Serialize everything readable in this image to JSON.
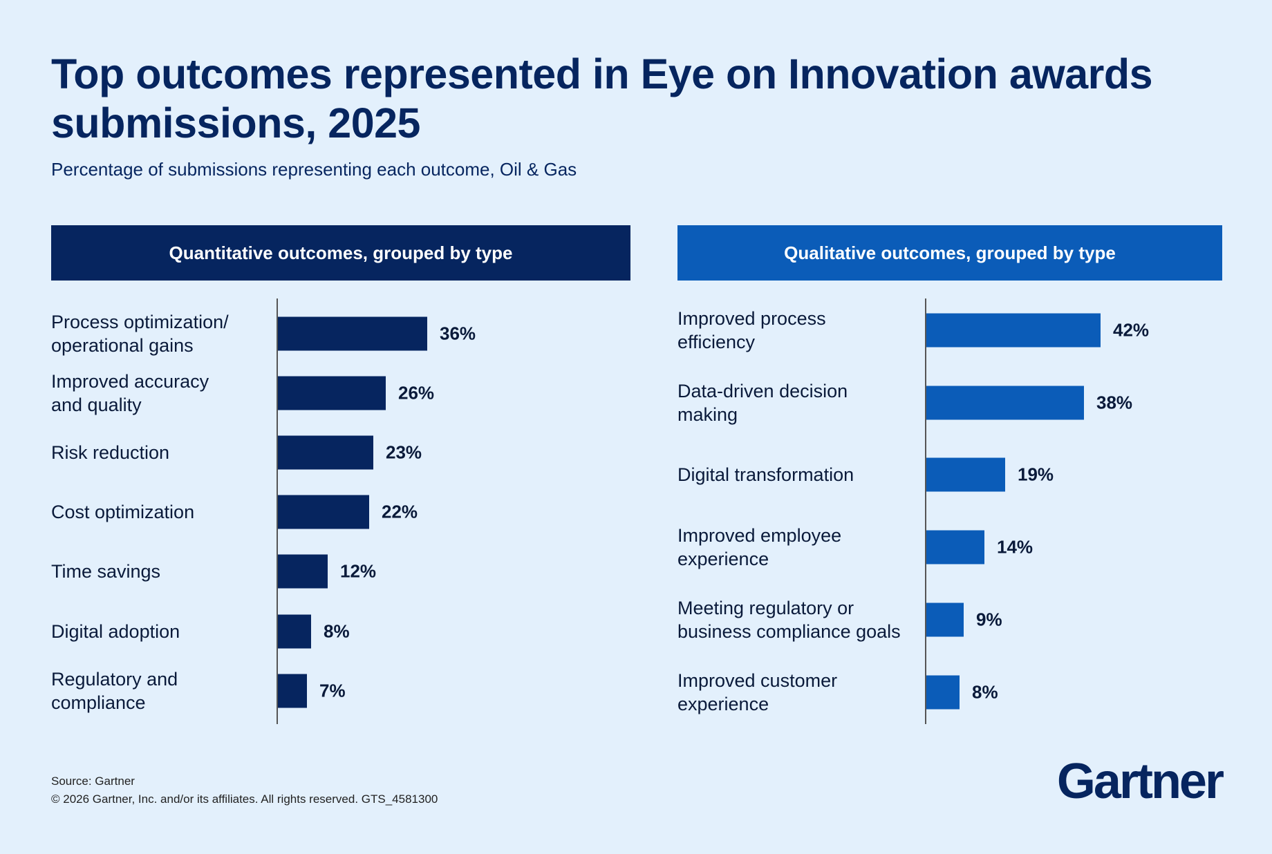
{
  "header": {
    "title": "Top outcomes represented in Eye on Innovation awards submissions, 2025",
    "subtitle": "Percentage of submissions representing each outcome, Oil & Gas"
  },
  "chart_data": [
    {
      "type": "hbar",
      "title": "Quantitative outcomes, grouped by type",
      "color": "#06255f",
      "categories": [
        "Process optimization/\noperational gains",
        "Improved accuracy\nand quality",
        "Risk reduction",
        "Cost optimization",
        "Time savings",
        "Digital adoption",
        "Regulatory and\ncompliance"
      ],
      "values": [
        36,
        26,
        23,
        22,
        12,
        8,
        7
      ],
      "value_labels": [
        "36%",
        "26%",
        "23%",
        "22%",
        "12%",
        "8%",
        "7%"
      ]
    },
    {
      "type": "hbar",
      "title": "Qualitative outcomes, grouped by type",
      "color": "#0b5cb8",
      "categories": [
        "Improved process\nefficiency",
        "Data-driven decision\nmaking",
        "Digital transformation",
        "Improved employee\nexperience",
        "Meeting regulatory or\nbusiness compliance goals",
        "Improved customer\nexperience"
      ],
      "values": [
        42,
        38,
        19,
        14,
        9,
        8
      ],
      "value_labels": [
        "42%",
        "38%",
        "19%",
        "14%",
        "9%",
        "8%"
      ]
    }
  ],
  "footer": {
    "source": "Source: Gartner",
    "copyright": "© 2026 Gartner, Inc. and/or its affiliates. All rights reserved. GTS_4581300",
    "logo": "Gartner"
  }
}
